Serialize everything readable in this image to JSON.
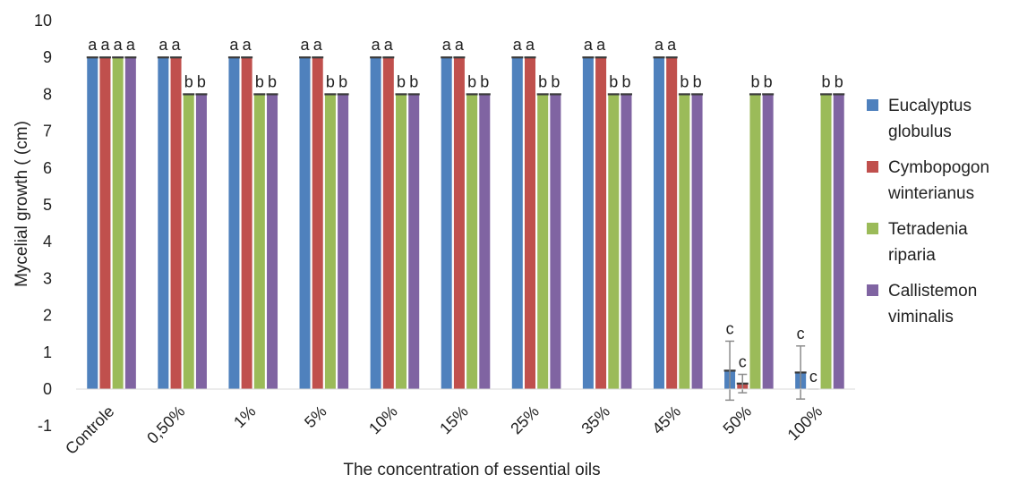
{
  "chart_data": {
    "type": "bar",
    "xlabel": "The concentration of essential oils",
    "ylabel": "Mycelial  growth ( (cm)",
    "ylim": [
      -1,
      10
    ],
    "yticks": [
      -1,
      0,
      1,
      2,
      3,
      4,
      5,
      6,
      7,
      8,
      9,
      10
    ],
    "grid": false,
    "legend_position": "right",
    "categories": [
      "Controle",
      "0,50%",
      "1%",
      "5%",
      "10%",
      "15%",
      "25%",
      "35%",
      "45%",
      "50%",
      "100%"
    ],
    "series": [
      {
        "name": "Eucalyptus globulus",
        "color": "#4f81bd",
        "values": [
          9,
          9,
          9,
          9,
          9,
          9,
          9,
          9,
          9,
          0.5,
          0.45
        ],
        "error": [
          0,
          0,
          0,
          0,
          0,
          0,
          0,
          0,
          0,
          0.8,
          0.72
        ],
        "labels": [
          "a",
          "a",
          "a",
          "a",
          "a",
          "a",
          "a",
          "a",
          "a",
          "c",
          "c"
        ]
      },
      {
        "name": "Cymbopogon winterianus",
        "color": "#c0504d",
        "values": [
          9,
          9,
          9,
          9,
          9,
          9,
          9,
          9,
          9,
          0.15,
          0
        ],
        "error": [
          0,
          0,
          0,
          0,
          0,
          0,
          0,
          0,
          0,
          0.25,
          0
        ],
        "labels": [
          "a",
          "a",
          "a",
          "a",
          "a",
          "a",
          "a",
          "a",
          "a",
          "c",
          "c"
        ]
      },
      {
        "name": "Tetradenia riparia",
        "color": "#9bbb59",
        "values": [
          9,
          8,
          8,
          8,
          8,
          8,
          8,
          8,
          8,
          8,
          8
        ],
        "error": [
          0,
          0,
          0,
          0,
          0,
          0,
          0,
          0,
          0,
          0,
          0
        ],
        "labels": [
          "a",
          "b",
          "b",
          "b",
          "b",
          "b",
          "b",
          "b",
          "b",
          "b",
          "b"
        ]
      },
      {
        "name": "Callistemon viminalis",
        "color": "#8064a2",
        "values": [
          9,
          8,
          8,
          8,
          8,
          8,
          8,
          8,
          8,
          8,
          8
        ],
        "error": [
          0,
          0,
          0,
          0,
          0,
          0,
          0,
          0,
          0,
          0,
          0
        ],
        "labels": [
          "a",
          "b",
          "b",
          "b",
          "b",
          "b",
          "b",
          "b",
          "b",
          "b",
          "b"
        ]
      }
    ]
  }
}
